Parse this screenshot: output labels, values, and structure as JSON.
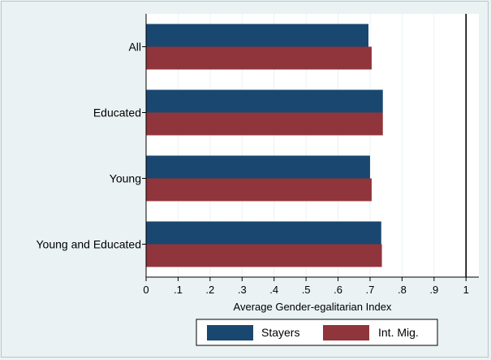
{
  "chart_data": {
    "type": "bar",
    "orientation": "horizontal",
    "categories": [
      "All",
      "Educated",
      "Young",
      "Young and Educated"
    ],
    "series": [
      {
        "name": "Stayers",
        "values": [
          0.695,
          0.74,
          0.7,
          0.735
        ],
        "color": "#1a476f"
      },
      {
        "name": "Int. Mig.",
        "values": [
          0.705,
          0.74,
          0.705,
          0.737
        ],
        "color": "#90353b"
      }
    ],
    "xlabel": "Average Gender-egalitarian Index",
    "xlim": [
      0,
      1.04
    ],
    "xticks": [
      0,
      0.1,
      0.2,
      0.3,
      0.4,
      0.5,
      0.6,
      0.7,
      0.8,
      0.9,
      1
    ],
    "xtick_labels": [
      "0",
      ".1",
      ".2",
      ".3",
      ".4",
      ".5",
      ".6",
      ".7",
      ".8",
      ".9",
      "1"
    ],
    "reference_line": {
      "x": 1
    },
    "grid": true,
    "legend_position": "bottom",
    "colors": {
      "background": "#eaf2f3",
      "plot": "#ffffff",
      "grid": "#eaf2f3"
    }
  }
}
